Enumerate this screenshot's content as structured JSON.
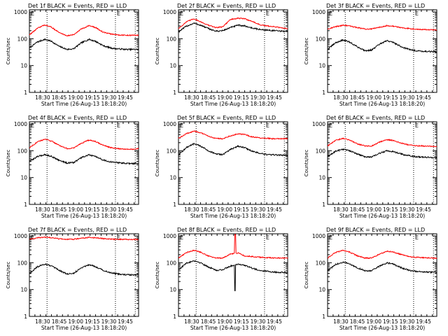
{
  "figure": {
    "panel_titles": [
      "Det 1f BLACK = Events, RED = LLD",
      "Det 2f BLACK = Events, RED = LLD",
      "Det 3f BLACK = Events, RED = LLD",
      "Det 4f BLACK = Events, RED = LLD",
      "Det 5f BLACK = Events, RED = LLD",
      "Det 6f BLACK = Events, RED = LLD",
      "Det 7f BLACK = Events, RED = LLD",
      "Det 8f BLACK = Events, RED = LLD",
      "Det 9f BLACK = Events, RED = LLD"
    ],
    "ylabel": "Counts/sec",
    "xlabel": "Start Time (26-Aug-13 18:18:20)",
    "x_tick_labels": [
      "18:30",
      "18:45",
      "19:00",
      "19:15",
      "19:30",
      "19:45"
    ],
    "y_tick_labels": [
      "1",
      "10",
      "100",
      "1000"
    ],
    "marker_labels": [
      "E",
      "E"
    ],
    "colors": {
      "events": "#000000",
      "lld": "#ff0000"
    }
  },
  "chart_data": [
    {
      "type": "line",
      "title": "Det 1f BLACK = Events, RED = LLD",
      "xlabel": "Start Time (26-Aug-13 18:18:20)",
      "ylabel": "Counts/sec",
      "y_scale": "log",
      "ylim": [
        1,
        1200
      ],
      "xlim": [
        "18:18",
        "19:57"
      ],
      "marker_times": [
        "18:34",
        "19:36",
        "19:54"
      ],
      "series": [
        {
          "name": "Events",
          "color": "#000000",
          "x": [
            "18:18",
            "18:25",
            "18:32",
            "18:38",
            "18:45",
            "18:52",
            "18:58",
            "19:05",
            "19:12",
            "19:18",
            "19:25",
            "19:32",
            "19:38",
            "19:45",
            "19:52",
            "19:57"
          ],
          "values": [
            45,
            75,
            95,
            80,
            52,
            40,
            42,
            70,
            95,
            80,
            55,
            45,
            42,
            40,
            40,
            40
          ]
        },
        {
          "name": "LLD",
          "color": "#ff0000",
          "x": [
            "18:18",
            "18:25",
            "18:32",
            "18:38",
            "18:45",
            "18:52",
            "18:58",
            "19:05",
            "19:12",
            "19:18",
            "19:25",
            "19:32",
            "19:38",
            "19:45",
            "19:52",
            "19:57"
          ],
          "values": [
            140,
            240,
            330,
            270,
            170,
            130,
            140,
            230,
            310,
            260,
            175,
            150,
            140,
            135,
            135,
            135
          ]
        }
      ]
    },
    {
      "type": "line",
      "title": "Det 2f BLACK = Events, RED = LLD",
      "xlabel": "Start Time (26-Aug-13 18:18:20)",
      "ylabel": "Counts/sec",
      "y_scale": "log",
      "ylim": [
        1,
        1200
      ],
      "xlim": [
        "18:18",
        "19:57"
      ],
      "marker_times": [
        "18:34",
        "19:36",
        "19:54"
      ],
      "series": [
        {
          "name": "Events",
          "color": "#000000",
          "x": [
            "18:18",
            "18:25",
            "18:32",
            "18:38",
            "18:45",
            "18:52",
            "18:58",
            "19:05",
            "19:12",
            "19:18",
            "19:25",
            "19:32",
            "19:38",
            "19:45",
            "19:52",
            "19:57"
          ],
          "values": [
            180,
            290,
            380,
            320,
            240,
            190,
            200,
            260,
            320,
            300,
            250,
            220,
            210,
            200,
            190,
            190
          ]
        },
        {
          "name": "LLD",
          "color": "#ff0000",
          "x": [
            "18:18",
            "18:25",
            "18:32",
            "18:38",
            "18:45",
            "18:52",
            "18:58",
            "19:05",
            "19:12",
            "19:18",
            "19:25",
            "19:32",
            "19:38",
            "19:45",
            "19:52",
            "19:57"
          ],
          "values": [
            240,
            420,
            560,
            430,
            320,
            260,
            280,
            520,
            580,
            560,
            440,
            330,
            300,
            280,
            250,
            240
          ]
        }
      ]
    },
    {
      "type": "line",
      "title": "Det 3f BLACK = Events, RED = LLD",
      "xlabel": "Start Time (26-Aug-13 18:18:20)",
      "ylabel": "Counts/sec",
      "y_scale": "log",
      "ylim": [
        1,
        1200
      ],
      "xlim": [
        "18:18",
        "19:57"
      ],
      "marker_times": [
        "18:34",
        "19:36",
        "19:54"
      ],
      "series": [
        {
          "name": "Events",
          "color": "#000000",
          "x": [
            "18:18",
            "18:25",
            "18:32",
            "18:38",
            "18:45",
            "18:52",
            "18:58",
            "19:05",
            "19:12",
            "19:18",
            "19:25",
            "19:32",
            "19:38",
            "19:45",
            "19:52",
            "19:57"
          ],
          "values": [
            40,
            70,
            90,
            75,
            50,
            36,
            38,
            62,
            85,
            72,
            50,
            40,
            36,
            34,
            33,
            33
          ]
        },
        {
          "name": "LLD",
          "color": "#ff0000",
          "x": [
            "18:18",
            "18:25",
            "18:32",
            "18:38",
            "18:45",
            "18:52",
            "18:58",
            "19:05",
            "19:12",
            "19:18",
            "19:25",
            "19:32",
            "19:38",
            "19:45",
            "19:52",
            "19:57"
          ],
          "values": [
            230,
            280,
            320,
            300,
            260,
            230,
            230,
            270,
            310,
            290,
            260,
            240,
            230,
            220,
            215,
            215
          ]
        }
      ]
    },
    {
      "type": "line",
      "title": "Det 4f BLACK = Events, RED = LLD",
      "xlabel": "Start Time (26-Aug-13 18:18:20)",
      "ylabel": "Counts/sec",
      "y_scale": "log",
      "ylim": [
        1,
        1200
      ],
      "xlim": [
        "18:18",
        "19:57"
      ],
      "marker_times": [
        "18:34",
        "19:36",
        "19:54"
      ],
      "series": [
        {
          "name": "Events",
          "color": "#000000",
          "x": [
            "18:18",
            "18:25",
            "18:32",
            "18:38",
            "18:45",
            "18:52",
            "18:58",
            "19:05",
            "19:12",
            "19:18",
            "19:25",
            "19:32",
            "19:38",
            "19:45",
            "19:52",
            "19:57"
          ],
          "values": [
            40,
            60,
            72,
            62,
            44,
            35,
            36,
            55,
            70,
            60,
            45,
            38,
            36,
            34,
            33,
            35
          ]
        },
        {
          "name": "LLD",
          "color": "#ff0000",
          "x": [
            "18:18",
            "18:25",
            "18:32",
            "18:38",
            "18:45",
            "18:52",
            "18:58",
            "19:05",
            "19:12",
            "19:18",
            "19:25",
            "19:32",
            "19:38",
            "19:45",
            "19:52",
            "19:57"
          ],
          "values": [
            130,
            210,
            270,
            230,
            160,
            120,
            125,
            190,
            250,
            220,
            160,
            130,
            120,
            115,
            115,
            120
          ]
        }
      ]
    },
    {
      "type": "line",
      "title": "Det 5f BLACK = Events, RED = LLD",
      "xlabel": "Start Time (26-Aug-13 18:18:20)",
      "ylabel": "Counts/sec",
      "y_scale": "log",
      "ylim": [
        1,
        1200
      ],
      "xlim": [
        "18:18",
        "19:57"
      ],
      "marker_times": [
        "18:34",
        "19:36",
        "19:54"
      ],
      "series": [
        {
          "name": "Events",
          "color": "#000000",
          "x": [
            "18:18",
            "18:25",
            "18:32",
            "18:38",
            "18:45",
            "18:52",
            "18:58",
            "19:05",
            "19:12",
            "19:18",
            "19:25",
            "19:32",
            "19:38",
            "19:45",
            "19:52",
            "19:57"
          ],
          "values": [
            70,
            130,
            180,
            150,
            100,
            75,
            72,
            110,
            150,
            130,
            95,
            80,
            72,
            70,
            68,
            68
          ]
        },
        {
          "name": "LLD",
          "color": "#ff0000",
          "x": [
            "18:18",
            "18:25",
            "18:32",
            "18:38",
            "18:45",
            "18:52",
            "18:58",
            "19:05",
            "19:12",
            "19:18",
            "19:25",
            "19:32",
            "19:38",
            "19:45",
            "19:52",
            "19:57"
          ],
          "values": [
            290,
            430,
            540,
            470,
            350,
            290,
            280,
            360,
            430,
            400,
            330,
            300,
            290,
            280,
            280,
            280
          ]
        }
      ]
    },
    {
      "type": "line",
      "title": "Det 6f BLACK = Events, RED = LLD",
      "xlabel": "Start Time (26-Aug-13 18:18:20)",
      "ylabel": "Counts/sec",
      "y_scale": "log",
      "ylim": [
        1,
        1200
      ],
      "xlim": [
        "18:18",
        "19:57"
      ],
      "marker_times": [
        "18:34",
        "19:36",
        "19:54"
      ],
      "series": [
        {
          "name": "Events",
          "color": "#000000",
          "x": [
            "18:18",
            "18:25",
            "18:32",
            "18:38",
            "18:45",
            "18:52",
            "18:58",
            "19:05",
            "19:12",
            "19:18",
            "19:25",
            "19:32",
            "19:38",
            "19:45",
            "19:52",
            "19:57"
          ],
          "values": [
            60,
            95,
            115,
            100,
            75,
            60,
            58,
            80,
            100,
            92,
            75,
            65,
            60,
            58,
            56,
            55
          ]
        },
        {
          "name": "LLD",
          "color": "#ff0000",
          "x": [
            "18:18",
            "18:25",
            "18:32",
            "18:38",
            "18:45",
            "18:52",
            "18:58",
            "19:05",
            "19:12",
            "19:18",
            "19:25",
            "19:32",
            "19:38",
            "19:45",
            "19:52",
            "19:57"
          ],
          "values": [
            150,
            240,
            290,
            250,
            180,
            150,
            150,
            210,
            260,
            240,
            190,
            165,
            155,
            150,
            145,
            145
          ]
        }
      ]
    },
    {
      "type": "line",
      "title": "Det 7f BLACK = Events, RED = LLD",
      "xlabel": "Start Time (26-Aug-13 18:18:20)",
      "ylabel": "Counts/sec",
      "y_scale": "log",
      "ylim": [
        1,
        1200
      ],
      "xlim": [
        "18:18",
        "19:57"
      ],
      "marker_times": [
        "18:34",
        "19:36",
        "19:54"
      ],
      "series": [
        {
          "name": "Events",
          "color": "#000000",
          "x": [
            "18:18",
            "18:25",
            "18:32",
            "18:38",
            "18:45",
            "18:52",
            "18:58",
            "19:05",
            "19:12",
            "19:18",
            "19:25",
            "19:32",
            "19:38",
            "19:45",
            "19:52",
            "19:57"
          ],
          "values": [
            40,
            70,
            90,
            75,
            52,
            38,
            40,
            65,
            85,
            72,
            52,
            42,
            38,
            36,
            35,
            35
          ]
        },
        {
          "name": "LLD",
          "color": "#ff0000",
          "x": [
            "18:18",
            "18:25",
            "18:32",
            "18:38",
            "18:45",
            "18:52",
            "18:58",
            "19:05",
            "19:12",
            "19:18",
            "19:25",
            "19:32",
            "19:38",
            "19:45",
            "19:52",
            "19:57"
          ],
          "values": [
            750,
            840,
            900,
            860,
            780,
            740,
            750,
            820,
            880,
            850,
            790,
            760,
            750,
            740,
            740,
            740
          ]
        }
      ]
    },
    {
      "type": "line",
      "title": "Det 8f BLACK = Events, RED = LLD",
      "xlabel": "Start Time (26-Aug-13 18:18:20)",
      "ylabel": "Counts/sec",
      "y_scale": "log",
      "ylim": [
        1,
        1200
      ],
      "xlim": [
        "18:18",
        "19:57"
      ],
      "marker_times": [
        "18:34",
        "19:36",
        "19:54"
      ],
      "series": [
        {
          "name": "Events",
          "color": "#000000",
          "x": [
            "18:18",
            "18:25",
            "18:32",
            "18:38",
            "18:45",
            "18:52",
            "18:58",
            "19:05",
            "19:12",
            "19:18",
            "19:25",
            "19:32",
            "19:38",
            "19:45",
            "19:52",
            "19:57"
          ],
          "values": [
            55,
            95,
            120,
            100,
            70,
            52,
            55,
            75,
            90,
            80,
            62,
            52,
            48,
            45,
            44,
            44
          ]
        },
        {
          "name": "LLD",
          "color": "#ff0000",
          "x": [
            "18:18",
            "18:25",
            "18:32",
            "18:38",
            "18:45",
            "18:52",
            "18:58",
            "19:05",
            "19:12",
            "19:18",
            "19:25",
            "19:32",
            "19:38",
            "19:45",
            "19:52",
            "19:57"
          ],
          "values": [
            150,
            240,
            290,
            250,
            180,
            150,
            150,
            210,
            230,
            180,
            170,
            160,
            155,
            150,
            150,
            150
          ]
        }
      ]
    },
    {
      "type": "line",
      "title": "Det 9f BLACK = Events, RED = LLD",
      "xlabel": "Start Time (26-Aug-13 18:18:20)",
      "ylabel": "Counts/sec",
      "y_scale": "log",
      "ylim": [
        1,
        1200
      ],
      "xlim": [
        "18:18",
        "19:57"
      ],
      "marker_times": [
        "18:34",
        "19:36",
        "19:54"
      ],
      "series": [
        {
          "name": "Events",
          "color": "#000000",
          "x": [
            "18:18",
            "18:25",
            "18:32",
            "18:38",
            "18:45",
            "18:52",
            "18:58",
            "19:05",
            "19:12",
            "19:18",
            "19:25",
            "19:32",
            "19:38",
            "19:45",
            "19:52",
            "19:57"
          ],
          "values": [
            50,
            85,
            105,
            90,
            65,
            50,
            50,
            75,
            100,
            88,
            65,
            52,
            48,
            45,
            44,
            44
          ]
        },
        {
          "name": "LLD",
          "color": "#ff0000",
          "x": [
            "18:18",
            "18:25",
            "18:32",
            "18:38",
            "18:45",
            "18:52",
            "18:58",
            "19:05",
            "19:12",
            "19:18",
            "19:25",
            "19:32",
            "19:38",
            "19:45",
            "19:52",
            "19:57"
          ],
          "values": [
            150,
            240,
            290,
            250,
            180,
            150,
            150,
            210,
            270,
            250,
            200,
            170,
            160,
            155,
            150,
            150
          ]
        }
      ]
    }
  ]
}
